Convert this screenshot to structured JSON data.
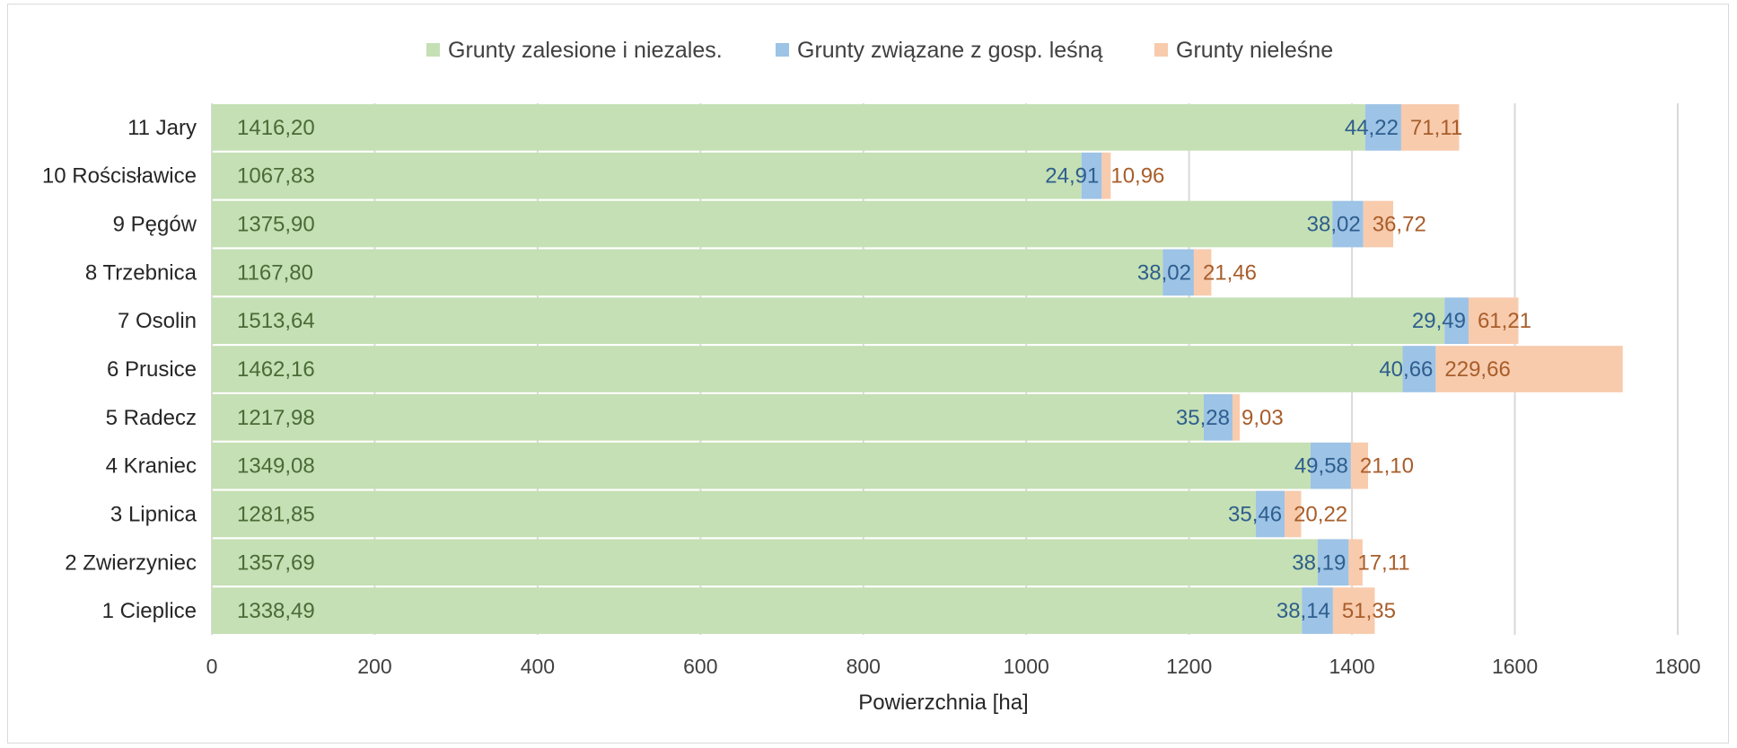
{
  "chart_data": {
    "type": "bar",
    "orientation": "horizontal",
    "stacked": true,
    "categories": [
      "11 Jary",
      "10 Rościsławice",
      "9 Pęgów",
      "8 Trzebnica",
      "7 Osolin",
      "6 Prusice",
      "5 Radecz",
      "4 Kraniec",
      "3 Lipnica",
      "2 Zwierzyniec",
      "1 Cieplice"
    ],
    "series": [
      {
        "name": "Grunty zalesione i niezales.",
        "color": "#c5e0b4",
        "label_color": "#4a6b37",
        "values": [
          1416.2,
          1067.83,
          1375.9,
          1167.8,
          1513.64,
          1462.16,
          1217.98,
          1349.08,
          1281.85,
          1357.69,
          1338.49
        ],
        "labels": [
          "1416,20",
          "1067,83",
          "1375,90",
          "1167,80",
          "1513,64",
          "1462,16",
          "1217,98",
          "1349,08",
          "1281,85",
          "1357,69",
          "1338,49"
        ]
      },
      {
        "name": "Grunty związane z gosp. leśną",
        "color": "#9dc3e6",
        "label_color": "#2e5e8e",
        "values": [
          44.22,
          24.91,
          38.02,
          38.02,
          29.49,
          40.66,
          35.28,
          49.58,
          35.46,
          38.19,
          38.14
        ],
        "labels": [
          "44,22",
          "24,91",
          "38,02",
          "38,02",
          "29,49",
          "40,66",
          "35,28",
          "49,58",
          "35,46",
          "38,19",
          "38,14"
        ]
      },
      {
        "name": "Grunty nieleśne",
        "color": "#f8cbad",
        "label_color": "#a85d2a",
        "values": [
          71.11,
          10.96,
          36.72,
          21.46,
          61.21,
          229.66,
          9.03,
          21.1,
          20.22,
          17.11,
          51.35
        ],
        "labels": [
          "71,11",
          "10,96",
          "36,72",
          "21,46",
          "61,21",
          "229,66",
          "9,03",
          "21,10",
          "20,22",
          "17,11",
          "51,35"
        ]
      }
    ],
    "xlabel": "Powierzchnia [ha]",
    "ylabel": "",
    "xlim": [
      0,
      1800
    ],
    "xticks": [
      0,
      200,
      400,
      600,
      800,
      1000,
      1200,
      1400,
      1600,
      1800
    ],
    "grid": "vertical",
    "legend_position": "top"
  }
}
